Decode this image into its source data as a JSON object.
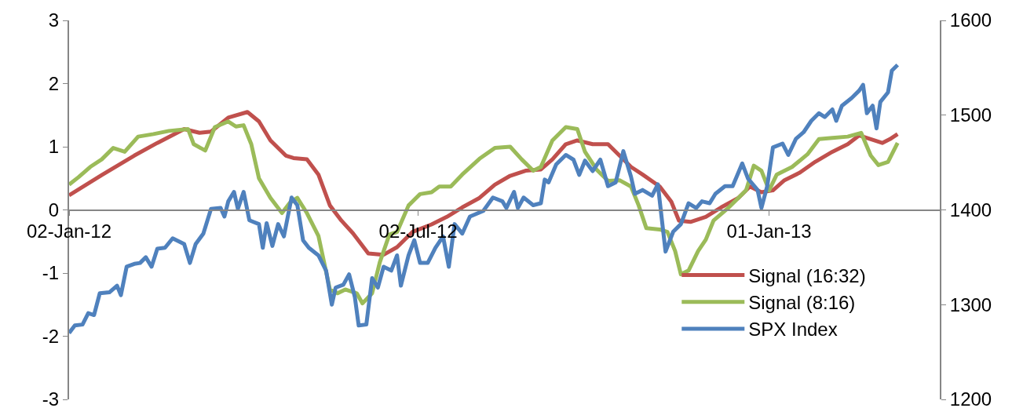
{
  "chart_data": {
    "type": "line",
    "xlim": [
      "2012-01-02",
      "2013-03-31"
    ],
    "xticks": [
      {
        "value": "2012-01-02",
        "label": "02-Jan-12"
      },
      {
        "value": "2012-07-02",
        "label": "02-Jul-12"
      },
      {
        "value": "2013-01-01",
        "label": "01-Jan-13"
      }
    ],
    "ylim": [
      -3,
      3
    ],
    "yticks": [
      -3,
      -2,
      -1,
      0,
      1,
      2,
      3
    ],
    "y2lim": [
      1200,
      1600
    ],
    "y2ticks": [
      1200,
      1300,
      1400,
      1500,
      1600
    ],
    "legend": "bottom right",
    "marker": "none",
    "line_style": "solid",
    "series": [
      {
        "name": "Signal (16:32)",
        "color": "#c0504d",
        "x": [
          "2012-01-02",
          "2012-01-19",
          "2012-02-05",
          "2012-02-17",
          "2012-03-02",
          "2012-03-10",
          "2012-03-16",
          "2012-03-25",
          "2012-04-04",
          "2012-04-10",
          "2012-04-16",
          "2012-04-24",
          "2012-04-28",
          "2012-05-05",
          "2012-05-11",
          "2012-05-17",
          "2012-05-23",
          "2012-05-29",
          "2012-06-06",
          "2012-06-14",
          "2012-06-21",
          "2012-06-29",
          "2012-07-09",
          "2012-07-17",
          "2012-07-25",
          "2012-08-03",
          "2012-08-11",
          "2012-08-19",
          "2012-08-27",
          "2012-09-04",
          "2012-09-10",
          "2012-09-17",
          "2012-09-23",
          "2012-10-01",
          "2012-10-09",
          "2012-10-15",
          "2012-10-21",
          "2012-10-27",
          "2012-11-05",
          "2012-11-11",
          "2012-11-15",
          "2012-11-21",
          "2012-11-29",
          "2012-12-07",
          "2012-12-16",
          "2012-12-22",
          "2012-12-28",
          "2013-01-03",
          "2013-01-09",
          "2013-01-17",
          "2013-01-25",
          "2013-02-03",
          "2013-02-11",
          "2013-02-17",
          "2013-02-23",
          "2013-03-01",
          "2013-03-05",
          "2013-03-09"
        ],
        "values": [
          0.23,
          0.55,
          0.86,
          1.06,
          1.28,
          1.22,
          1.24,
          1.46,
          1.55,
          1.4,
          1.1,
          0.86,
          0.82,
          0.8,
          0.56,
          0.07,
          -0.17,
          -0.37,
          -0.69,
          -0.71,
          -0.59,
          -0.35,
          -0.23,
          -0.11,
          0.04,
          0.19,
          0.4,
          0.54,
          0.62,
          0.64,
          0.8,
          1.04,
          1.1,
          1.04,
          1.04,
          0.86,
          0.68,
          0.56,
          0.37,
          0.13,
          -0.17,
          -0.19,
          -0.11,
          0.04,
          0.19,
          0.37,
          0.28,
          0.31,
          0.47,
          0.59,
          0.76,
          0.92,
          1.04,
          1.18,
          1.12,
          1.06,
          1.12,
          1.2
        ]
      },
      {
        "name": "Signal (8:16)",
        "color": "#9bbb59",
        "x": [
          "2012-01-02",
          "2012-01-07",
          "2012-01-13",
          "2012-01-19",
          "2012-01-25",
          "2012-01-31",
          "2012-02-07",
          "2012-02-15",
          "2012-02-23",
          "2012-03-04",
          "2012-03-07",
          "2012-03-13",
          "2012-03-18",
          "2012-03-25",
          "2012-03-29",
          "2012-04-02",
          "2012-04-06",
          "2012-04-10",
          "2012-04-16",
          "2012-04-22",
          "2012-04-26",
          "2012-04-30",
          "2012-05-05",
          "2012-05-11",
          "2012-05-17",
          "2012-05-21",
          "2012-05-25",
          "2012-05-31",
          "2012-06-03",
          "2012-06-08",
          "2012-06-12",
          "2012-06-17",
          "2012-06-21",
          "2012-06-27",
          "2012-07-03",
          "2012-07-09",
          "2012-07-13",
          "2012-07-19",
          "2012-07-25",
          "2012-08-03",
          "2012-08-11",
          "2012-08-19",
          "2012-08-25",
          "2012-08-31",
          "2012-09-04",
          "2012-09-10",
          "2012-09-17",
          "2012-09-23",
          "2012-09-27",
          "2012-10-03",
          "2012-10-09",
          "2012-10-15",
          "2012-10-21",
          "2012-10-25",
          "2012-10-29",
          "2012-11-05",
          "2012-11-09",
          "2012-11-13",
          "2012-11-16",
          "2012-11-20",
          "2012-11-25",
          "2012-11-29",
          "2012-12-03",
          "2012-12-11",
          "2012-12-20",
          "2012-12-24",
          "2012-12-28",
          "2013-01-01",
          "2013-01-05",
          "2013-01-13",
          "2013-01-21",
          "2013-01-27",
          "2013-02-03",
          "2013-02-11",
          "2013-02-18",
          "2013-02-23",
          "2013-02-27",
          "2013-03-04",
          "2013-03-09"
        ],
        "values": [
          0.4,
          0.52,
          0.68,
          0.8,
          0.98,
          0.92,
          1.16,
          1.2,
          1.25,
          1.28,
          1.04,
          0.94,
          1.31,
          1.4,
          1.32,
          1.34,
          1.04,
          0.5,
          0.19,
          -0.05,
          0.11,
          0.19,
          -0.05,
          -0.41,
          -1.26,
          -1.32,
          -1.26,
          -1.32,
          -1.48,
          -1.32,
          -0.83,
          -0.39,
          -0.35,
          0.07,
          0.25,
          0.28,
          0.37,
          0.37,
          0.56,
          0.81,
          0.98,
          1.0,
          0.8,
          0.62,
          0.68,
          1.1,
          1.31,
          1.28,
          0.92,
          0.64,
          0.46,
          0.47,
          0.37,
          0.07,
          -0.29,
          -0.31,
          -0.35,
          -0.65,
          -1.02,
          -0.96,
          -0.65,
          -0.47,
          -0.17,
          0.04,
          0.31,
          0.7,
          0.62,
          0.31,
          0.56,
          0.68,
          0.88,
          1.12,
          1.14,
          1.16,
          1.22,
          0.86,
          0.71,
          0.76,
          1.06
        ]
      },
      {
        "name": "SPX Index",
        "color": "#4f81bd",
        "axis": "y2",
        "x": [
          "2012-01-02",
          "2012-01-05",
          "2012-01-09",
          "2012-01-12",
          "2012-01-15",
          "2012-01-18",
          "2012-01-23",
          "2012-01-27",
          "2012-01-29",
          "2012-02-01",
          "2012-02-05",
          "2012-02-08",
          "2012-02-11",
          "2012-02-14",
          "2012-02-17",
          "2012-02-21",
          "2012-02-25",
          "2012-03-02",
          "2012-03-05",
          "2012-03-08",
          "2012-03-12",
          "2012-03-16",
          "2012-03-21",
          "2012-03-23",
          "2012-03-25",
          "2012-03-28",
          "2012-03-30",
          "2012-04-02",
          "2012-04-05",
          "2012-04-10",
          "2012-04-12",
          "2012-04-14",
          "2012-04-17",
          "2012-04-20",
          "2012-04-23",
          "2012-04-27",
          "2012-04-30",
          "2012-05-03",
          "2012-05-06",
          "2012-05-11",
          "2012-05-15",
          "2012-05-18",
          "2012-05-20",
          "2012-05-24",
          "2012-05-27",
          "2012-05-30",
          "2012-06-01",
          "2012-06-05",
          "2012-06-08",
          "2012-06-11",
          "2012-06-14",
          "2012-06-18",
          "2012-06-21",
          "2012-06-23",
          "2012-06-27",
          "2012-06-30",
          "2012-07-03",
          "2012-07-07",
          "2012-07-11",
          "2012-07-15",
          "2012-07-18",
          "2012-07-21",
          "2012-07-25",
          "2012-07-29",
          "2012-08-05",
          "2012-08-10",
          "2012-08-15",
          "2012-08-17",
          "2012-08-21",
          "2012-08-23",
          "2012-08-26",
          "2012-08-31",
          "2012-09-04",
          "2012-09-06",
          "2012-09-08",
          "2012-09-12",
          "2012-09-17",
          "2012-09-21",
          "2012-09-24",
          "2012-09-27",
          "2012-10-01",
          "2012-10-05",
          "2012-10-09",
          "2012-10-13",
          "2012-10-17",
          "2012-10-21",
          "2012-10-23",
          "2012-10-27",
          "2012-11-01",
          "2012-11-04",
          "2012-11-05",
          "2012-11-08",
          "2012-11-12",
          "2012-11-16",
          "2012-11-20",
          "2012-11-24",
          "2012-11-27",
          "2012-12-01",
          "2012-12-04",
          "2012-12-09",
          "2012-12-13",
          "2012-12-18",
          "2012-12-21",
          "2012-12-26",
          "2012-12-28",
          "2012-12-31",
          "2013-01-03",
          "2013-01-08",
          "2013-01-11",
          "2013-01-15",
          "2013-01-19",
          "2013-01-23",
          "2013-01-27",
          "2013-01-30",
          "2013-02-03",
          "2013-02-05",
          "2013-02-08",
          "2013-02-13",
          "2013-02-17",
          "2013-02-19",
          "2013-02-21",
          "2013-02-24",
          "2013-02-26",
          "2013-02-28",
          "2013-03-04",
          "2013-03-06",
          "2013-03-09"
        ],
        "values": [
          1270,
          1278,
          1279,
          1291,
          1289,
          1312,
          1313,
          1320,
          1310,
          1340,
          1343,
          1344,
          1350,
          1340,
          1359,
          1360,
          1370,
          1364,
          1344,
          1364,
          1375,
          1401,
          1402,
          1393,
          1409,
          1419,
          1401,
          1419,
          1389,
          1385,
          1360,
          1386,
          1362,
          1385,
          1372,
          1413,
          1405,
          1368,
          1360,
          1352,
          1336,
          1300,
          1318,
          1321,
          1332,
          1308,
          1278,
          1279,
          1328,
          1318,
          1340,
          1336,
          1352,
          1320,
          1352,
          1368,
          1344,
          1344,
          1360,
          1372,
          1340,
          1385,
          1375,
          1393,
          1399,
          1413,
          1409,
          1402,
          1419,
          1402,
          1413,
          1405,
          1407,
          1432,
          1429,
          1448,
          1458,
          1453,
          1437,
          1452,
          1441,
          1453,
          1425,
          1429,
          1462,
          1435,
          1417,
          1421,
          1415,
          1427,
          1409,
          1356,
          1377,
          1385,
          1407,
          1402,
          1409,
          1407,
          1417,
          1425,
          1425,
          1449,
          1433,
          1421,
          1402,
          1425,
          1466,
          1470,
          1458,
          1475,
          1482,
          1494,
          1502,
          1498,
          1506,
          1494,
          1510,
          1518,
          1526,
          1532,
          1502,
          1510,
          1486,
          1514,
          1524,
          1547,
          1553
        ]
      }
    ]
  }
}
